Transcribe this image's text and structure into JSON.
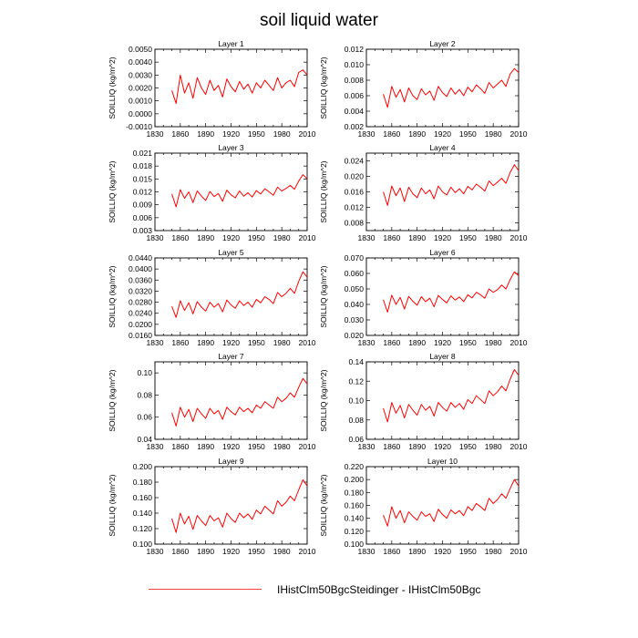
{
  "title": "soil liquid water",
  "legend": {
    "label": "IHistClm50BgcSteidinger - IHistClm50Bgc",
    "color": "#ff0000"
  },
  "chart_data": [
    {
      "type": "line",
      "title": "Layer 1",
      "ylabel": "SOILLIQ  (kg/m^2)",
      "xlim": [
        1830,
        2010
      ],
      "xticks": [
        1830,
        1860,
        1890,
        1920,
        1950,
        1980,
        2010
      ],
      "ylim": [
        -0.001,
        0.005
      ],
      "yticks": [
        "-0.0010",
        "0.0000",
        "0.0010",
        "0.0020",
        "0.0030",
        "0.0040",
        "0.0050"
      ],
      "series": [
        {
          "color": "#ff0000",
          "x_start": 1850,
          "x_step": 5,
          "values": [
            0.0018,
            0.0008,
            0.003,
            0.0016,
            0.0024,
            0.0012,
            0.0028,
            0.002,
            0.0015,
            0.0026,
            0.0018,
            0.0022,
            0.0013,
            0.0027,
            0.0021,
            0.0017,
            0.0025,
            0.0019,
            0.0023,
            0.0016,
            0.0024,
            0.002,
            0.0026,
            0.0022,
            0.0018,
            0.0028,
            0.002,
            0.0024,
            0.0026,
            0.0021,
            0.0032,
            0.0034,
            0.003
          ]
        }
      ]
    },
    {
      "type": "line",
      "title": "Layer 2",
      "ylabel": "SOILLIQ  (kg/m^2)",
      "xlim": [
        1830,
        2010
      ],
      "xticks": [
        1830,
        1860,
        1890,
        1920,
        1950,
        1980,
        2010
      ],
      "ylim": [
        0.002,
        0.012
      ],
      "yticks": [
        "0.002",
        "0.004",
        "0.006",
        "0.008",
        "0.010",
        "0.012"
      ],
      "series": [
        {
          "color": "#ff0000",
          "x_start": 1850,
          "x_step": 5,
          "values": [
            0.0062,
            0.0045,
            0.0072,
            0.0058,
            0.0068,
            0.0052,
            0.007,
            0.006,
            0.0055,
            0.0069,
            0.0061,
            0.0066,
            0.0054,
            0.0072,
            0.0064,
            0.0059,
            0.007,
            0.0062,
            0.0068,
            0.006,
            0.0071,
            0.0065,
            0.0074,
            0.0069,
            0.0063,
            0.0077,
            0.007,
            0.0075,
            0.008,
            0.0072,
            0.0088,
            0.0095,
            0.009
          ]
        }
      ]
    },
    {
      "type": "line",
      "title": "Layer 3",
      "ylabel": "SOILLIQ  (kg/m^2)",
      "xlim": [
        1830,
        2010
      ],
      "xticks": [
        1830,
        1860,
        1890,
        1920,
        1950,
        1980,
        2010
      ],
      "ylim": [
        0.003,
        0.021
      ],
      "yticks": [
        "0.003",
        "0.006",
        "0.009",
        "0.012",
        "0.015",
        "0.018",
        "0.021"
      ],
      "series": [
        {
          "color": "#ff0000",
          "x_start": 1850,
          "x_step": 5,
          "values": [
            0.0115,
            0.0085,
            0.0125,
            0.0105,
            0.012,
            0.0095,
            0.0122,
            0.011,
            0.01,
            0.0121,
            0.0109,
            0.0116,
            0.0098,
            0.0124,
            0.0113,
            0.0106,
            0.0122,
            0.011,
            0.0118,
            0.0108,
            0.0123,
            0.0115,
            0.0127,
            0.012,
            0.0112,
            0.0131,
            0.0122,
            0.0128,
            0.0135,
            0.0126,
            0.0145,
            0.016,
            0.015
          ]
        }
      ]
    },
    {
      "type": "line",
      "title": "Layer 4",
      "ylabel": "SOILLIQ  (kg/m^2)",
      "xlim": [
        1830,
        2010
      ],
      "xticks": [
        1830,
        1860,
        1890,
        1920,
        1950,
        1980,
        2010
      ],
      "ylim": [
        0.006,
        0.026
      ],
      "yticks": [
        "0.008",
        "0.012",
        "0.016",
        "0.020",
        "0.024"
      ],
      "series": [
        {
          "color": "#ff0000",
          "x_start": 1850,
          "x_step": 5,
          "values": [
            0.016,
            0.0125,
            0.0175,
            0.015,
            0.017,
            0.0135,
            0.0172,
            0.0155,
            0.0145,
            0.017,
            0.0155,
            0.0165,
            0.0142,
            0.0175,
            0.016,
            0.0152,
            0.0172,
            0.0158,
            0.0168,
            0.0155,
            0.0174,
            0.0165,
            0.018,
            0.0172,
            0.0162,
            0.0188,
            0.0176,
            0.0185,
            0.0195,
            0.0182,
            0.021,
            0.023,
            0.0215
          ]
        }
      ]
    },
    {
      "type": "line",
      "title": "Layer 5",
      "ylabel": "SOILLIQ  (kg/m^2)",
      "xlim": [
        1830,
        2010
      ],
      "xticks": [
        1830,
        1860,
        1890,
        1920,
        1950,
        1980,
        2010
      ],
      "ylim": [
        0.016,
        0.044
      ],
      "yticks": [
        "0.0160",
        "0.0200",
        "0.0240",
        "0.0280",
        "0.0320",
        "0.0360",
        "0.0400",
        "0.0440"
      ],
      "series": [
        {
          "color": "#ff0000",
          "x_start": 1850,
          "x_step": 5,
          "values": [
            0.0265,
            0.0225,
            0.0285,
            0.025,
            0.0278,
            0.0238,
            0.0282,
            0.0262,
            0.0248,
            0.028,
            0.0262,
            0.0275,
            0.0245,
            0.0288,
            0.027,
            0.0258,
            0.0285,
            0.0268,
            0.028,
            0.0262,
            0.029,
            0.0278,
            0.03,
            0.029,
            0.0275,
            0.0315,
            0.03,
            0.0312,
            0.033,
            0.0312,
            0.0355,
            0.039,
            0.037
          ]
        }
      ]
    },
    {
      "type": "line",
      "title": "Layer 6",
      "ylabel": "SOILLIQ  (kg/m^2)",
      "xlim": [
        1830,
        2010
      ],
      "xticks": [
        1830,
        1860,
        1890,
        1920,
        1950,
        1980,
        2010
      ],
      "ylim": [
        0.02,
        0.07
      ],
      "yticks": [
        "0.020",
        "0.030",
        "0.040",
        "0.050",
        "0.060",
        "0.070"
      ],
      "series": [
        {
          "color": "#ff0000",
          "x_start": 1850,
          "x_step": 5,
          "values": [
            0.043,
            0.035,
            0.046,
            0.04,
            0.0445,
            0.037,
            0.0452,
            0.042,
            0.0395,
            0.045,
            0.0418,
            0.044,
            0.0385,
            0.0458,
            0.0432,
            0.041,
            0.0455,
            0.0428,
            0.0448,
            0.0418,
            0.0462,
            0.0442,
            0.0478,
            0.0462,
            0.044,
            0.05,
            0.0478,
            0.0495,
            0.0525,
            0.05,
            0.056,
            0.061,
            0.0585
          ]
        }
      ]
    },
    {
      "type": "line",
      "title": "Layer 7",
      "ylabel": "SOILLIQ  (kg/m^2)",
      "xlim": [
        1830,
        2010
      ],
      "xticks": [
        1830,
        1860,
        1890,
        1920,
        1950,
        1980,
        2010
      ],
      "ylim": [
        0.04,
        0.11
      ],
      "yticks": [
        "0.04",
        "0.06",
        "0.08",
        "0.10"
      ],
      "series": [
        {
          "color": "#ff0000",
          "x_start": 1850,
          "x_step": 5,
          "values": [
            0.064,
            0.052,
            0.069,
            0.06,
            0.067,
            0.056,
            0.068,
            0.063,
            0.059,
            0.068,
            0.063,
            0.066,
            0.058,
            0.069,
            0.065,
            0.062,
            0.069,
            0.065,
            0.068,
            0.064,
            0.071,
            0.068,
            0.074,
            0.071,
            0.068,
            0.078,
            0.074,
            0.077,
            0.082,
            0.078,
            0.087,
            0.095,
            0.09
          ]
        }
      ]
    },
    {
      "type": "line",
      "title": "Layer 8",
      "ylabel": "SOILLIQ  (kg/m^2)",
      "xlim": [
        1830,
        2010
      ],
      "xticks": [
        1830,
        1860,
        1890,
        1920,
        1950,
        1980,
        2010
      ],
      "ylim": [
        0.06,
        0.14
      ],
      "yticks": [
        "0.06",
        "0.08",
        "0.10",
        "0.12",
        "0.14"
      ],
      "series": [
        {
          "color": "#ff0000",
          "x_start": 1850,
          "x_step": 5,
          "values": [
            0.092,
            0.078,
            0.098,
            0.087,
            0.095,
            0.082,
            0.096,
            0.09,
            0.085,
            0.096,
            0.09,
            0.094,
            0.084,
            0.098,
            0.093,
            0.089,
            0.098,
            0.093,
            0.097,
            0.091,
            0.101,
            0.097,
            0.105,
            0.101,
            0.097,
            0.11,
            0.105,
            0.109,
            0.115,
            0.11,
            0.122,
            0.132,
            0.126
          ]
        }
      ]
    },
    {
      "type": "line",
      "title": "Layer 9",
      "ylabel": "SOILLIQ  (kg/m^2)",
      "xlim": [
        1830,
        2010
      ],
      "xticks": [
        1830,
        1860,
        1890,
        1920,
        1950,
        1980,
        2010
      ],
      "ylim": [
        0.1,
        0.2
      ],
      "yticks": [
        "0.100",
        "0.120",
        "0.140",
        "0.160",
        "0.180",
        "0.200"
      ],
      "series": [
        {
          "color": "#ff0000",
          "x_start": 1850,
          "x_step": 5,
          "values": [
            0.133,
            0.115,
            0.14,
            0.126,
            0.136,
            0.119,
            0.137,
            0.13,
            0.124,
            0.137,
            0.13,
            0.134,
            0.122,
            0.14,
            0.133,
            0.128,
            0.14,
            0.134,
            0.139,
            0.132,
            0.144,
            0.139,
            0.149,
            0.144,
            0.139,
            0.156,
            0.149,
            0.154,
            0.162,
            0.156,
            0.17,
            0.183,
            0.175
          ]
        }
      ]
    },
    {
      "type": "line",
      "title": "Layer 10",
      "ylabel": "SOILLIQ  (kg/m^2)",
      "xlim": [
        1830,
        2010
      ],
      "xticks": [
        1830,
        1860,
        1890,
        1920,
        1950,
        1980,
        2010
      ],
      "ylim": [
        0.1,
        0.22
      ],
      "yticks": [
        "0.100",
        "0.120",
        "0.140",
        "0.160",
        "0.180",
        "0.200",
        "0.220"
      ],
      "series": [
        {
          "color": "#ff0000",
          "x_start": 1850,
          "x_step": 5,
          "values": [
            0.145,
            0.128,
            0.158,
            0.14,
            0.152,
            0.133,
            0.15,
            0.143,
            0.137,
            0.15,
            0.143,
            0.147,
            0.135,
            0.154,
            0.146,
            0.14,
            0.153,
            0.147,
            0.152,
            0.144,
            0.158,
            0.152,
            0.163,
            0.158,
            0.152,
            0.171,
            0.163,
            0.169,
            0.178,
            0.171,
            0.186,
            0.2,
            0.19
          ]
        }
      ]
    }
  ]
}
